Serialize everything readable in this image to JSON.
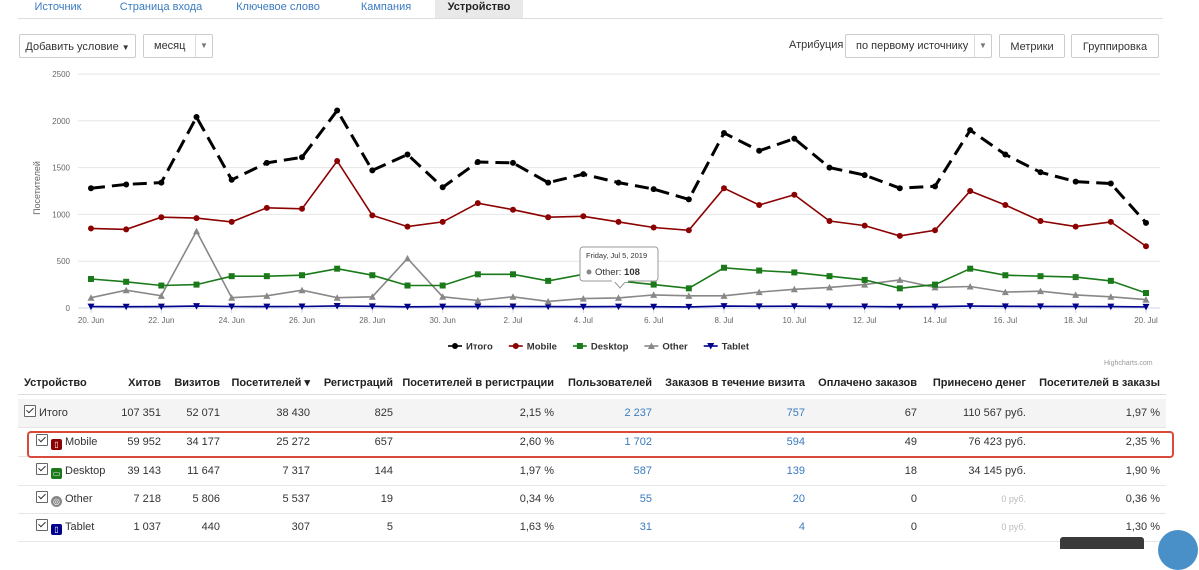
{
  "tabs": [
    {
      "label": "Источник",
      "active": false
    },
    {
      "label": "Страница входа",
      "active": false
    },
    {
      "label": "Ключевое слово",
      "active": false
    },
    {
      "label": "Кампания",
      "active": false
    },
    {
      "label": "Устройство",
      "active": true
    }
  ],
  "toolbar": {
    "add_condition": "Добавить условие",
    "period": "месяц",
    "attribution_label": "Атрибуция",
    "attribution_value": "по первому источнику",
    "metrics": "Метрики",
    "grouping": "Группировка"
  },
  "chart_data": {
    "type": "line",
    "ylabel": "Посетителей",
    "ylim": [
      0,
      2500
    ],
    "yticks": [
      0,
      500,
      1000,
      1500,
      2000,
      2500
    ],
    "x": [
      "20. Jun",
      "21. Jun",
      "22. Jun",
      "23. Jun",
      "24. Jun",
      "25. Jun",
      "26. Jun",
      "27. Jun",
      "28. Jun",
      "29. Jun",
      "30. Jun",
      "1. Jul",
      "2. Jul",
      "3. Jul",
      "4. Jul",
      "5. Jul",
      "6. Jul",
      "7. Jul",
      "8. Jul",
      "9. Jul",
      "10. Jul",
      "11. Jul",
      "12. Jul",
      "13. Jul",
      "14. Jul",
      "15. Jul",
      "16. Jul",
      "17. Jul",
      "18. Jul",
      "19. Jul",
      "20. Jul"
    ],
    "xtick_labels": [
      "20. Jun",
      "22. Jun",
      "24. Jun",
      "26. Jun",
      "28. Jun",
      "30. Jun",
      "2. Jul",
      "4. Jul",
      "6. Jul",
      "8. Jul",
      "10. Jul",
      "12. Jul",
      "14. Jul",
      "16. Jul",
      "18. Jul",
      "20. Jul"
    ],
    "series": [
      {
        "name": "Итого",
        "color": "#000000",
        "marker": "circle",
        "dash": true,
        "values": [
          1280,
          1320,
          1340,
          2040,
          1370,
          1550,
          1610,
          2110,
          1470,
          1640,
          1290,
          1560,
          1550,
          1340,
          1430,
          1340,
          1270,
          1160,
          1870,
          1680,
          1810,
          1500,
          1420,
          1280,
          1300,
          1900,
          1640,
          1450,
          1350,
          1330,
          910
        ]
      },
      {
        "name": "Mobile",
        "color": "#8b0000",
        "marker": "circle",
        "dash": false,
        "values": [
          850,
          840,
          970,
          960,
          920,
          1070,
          1060,
          1570,
          990,
          870,
          920,
          1120,
          1050,
          970,
          980,
          920,
          860,
          830,
          1280,
          1100,
          1210,
          930,
          880,
          770,
          830,
          1250,
          1100,
          930,
          870,
          920,
          660
        ]
      },
      {
        "name": "Desktop",
        "color": "#1a7a1a",
        "marker": "square",
        "dash": false,
        "values": [
          310,
          280,
          240,
          250,
          340,
          340,
          350,
          420,
          350,
          240,
          240,
          360,
          360,
          290,
          360,
          290,
          250,
          210,
          430,
          400,
          380,
          340,
          300,
          210,
          250,
          420,
          350,
          340,
          330,
          290,
          160
        ]
      },
      {
        "name": "Other",
        "color": "#888888",
        "marker": "triangle",
        "dash": false,
        "values": [
          110,
          190,
          130,
          820,
          110,
          130,
          190,
          110,
          120,
          530,
          120,
          80,
          120,
          70,
          100,
          108,
          140,
          130,
          130,
          170,
          200,
          220,
          250,
          300,
          220,
          230,
          170,
          180,
          140,
          120,
          90
        ]
      },
      {
        "name": "Tablet",
        "color": "#00008b",
        "marker": "triangle-down",
        "dash": false,
        "values": [
          15,
          14,
          15,
          20,
          16,
          15,
          16,
          22,
          18,
          13,
          15,
          15,
          16,
          15,
          14,
          15,
          14,
          12,
          20,
          18,
          19,
          17,
          16,
          14,
          15,
          20,
          18,
          17,
          16,
          15,
          12
        ]
      }
    ],
    "tooltip": {
      "date": "Friday, Jul 5, 2019",
      "series": "Other",
      "value": "108"
    },
    "credits": "Highcharts.com"
  },
  "table": {
    "headers": [
      "Устройство",
      "Хитов",
      "Визитов",
      "Посетителей ▾",
      "Регистраций",
      "Посетителей в регистрации",
      "Пользователей",
      "Заказов в течение визита",
      "Оплачено заказов",
      "Принесено денег",
      "Посетителей в заказы"
    ],
    "rows": [
      {
        "device": "Итого",
        "hits": "107 351",
        "visits": "52 071",
        "visitors": "38 430",
        "regs": "825",
        "visitors_to_regs": "2,15 %",
        "users": "2 237",
        "orders": "757",
        "paid": "67",
        "money": "110 567 руб.",
        "visitors_to_orders": "1,97 %"
      },
      {
        "device": "Mobile",
        "hits": "59 952",
        "visits": "34 177",
        "visitors": "25 272",
        "regs": "657",
        "visitors_to_regs": "2,60 %",
        "users": "1 702",
        "orders": "594",
        "paid": "49",
        "money": "76 423 руб.",
        "visitors_to_orders": "2,35 %"
      },
      {
        "device": "Desktop",
        "hits": "39 143",
        "visits": "11 647",
        "visitors": "7 317",
        "regs": "144",
        "visitors_to_regs": "1,97 %",
        "users": "587",
        "orders": "139",
        "paid": "18",
        "money": "34 145 руб.",
        "visitors_to_orders": "1,90 %"
      },
      {
        "device": "Other",
        "hits": "7 218",
        "visits": "5 806",
        "visitors": "5 537",
        "regs": "19",
        "visitors_to_regs": "0,34 %",
        "users": "55",
        "orders": "20",
        "paid": "0",
        "money": "0 руб.",
        "visitors_to_orders": "0,36 %"
      },
      {
        "device": "Tablet",
        "hits": "1 037",
        "visits": "440",
        "visitors": "307",
        "regs": "5",
        "visitors_to_regs": "1,63 %",
        "users": "31",
        "orders": "4",
        "paid": "0",
        "money": "0 руб.",
        "visitors_to_orders": "1,30 %"
      }
    ]
  },
  "device_icon_colors": {
    "Mobile": "#8b0000",
    "Desktop": "#1a7a1a",
    "Other": "#888888",
    "Tablet": "#00008b"
  }
}
